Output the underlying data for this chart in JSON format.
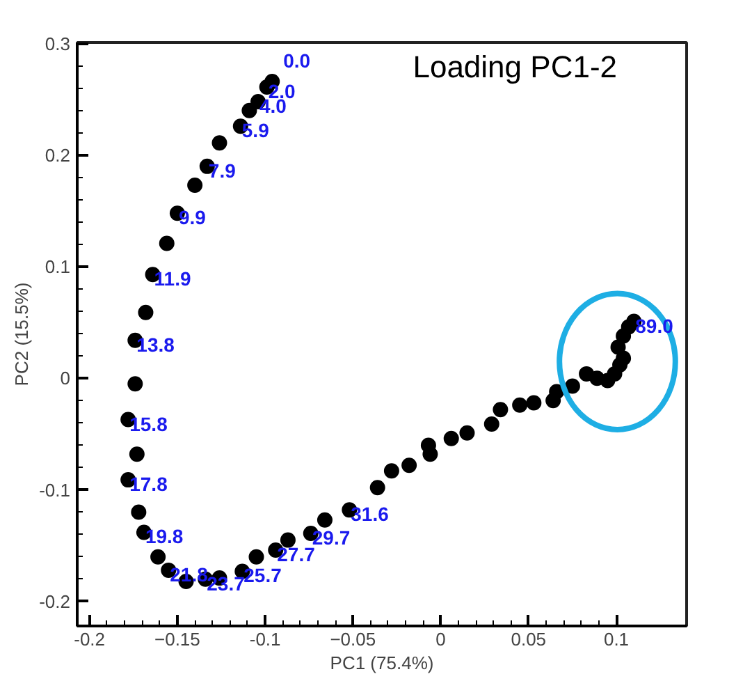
{
  "chart_data": {
    "type": "scatter",
    "title": "Loading PC1-2",
    "xlabel": "PC1 (75.4%)",
    "ylabel": "PC2 (15.5%)",
    "xlim": [
      -0.207,
      0.14
    ],
    "ylim": [
      -0.222,
      0.301
    ],
    "xticks": [
      {
        "value": -0.2,
        "label": "-0.2"
      },
      -0.15,
      {
        "value": -0.1,
        "label": "-0.1"
      },
      -0.05,
      0,
      0.05,
      {
        "value": 0.1,
        "label": "0.1"
      }
    ],
    "yticks": [
      {
        "value": -0.2,
        "label": "-0.2"
      },
      {
        "value": -0.1,
        "label": "-0.1"
      },
      0,
      {
        "value": 0.1,
        "label": "0.1"
      },
      {
        "value": 0.2,
        "label": "0.2"
      },
      {
        "value": 0.3,
        "label": "0.3"
      }
    ],
    "grid": false,
    "marker": "circle",
    "series": [
      {
        "color": "#000000",
        "x": [
          -0.096,
          -0.099,
          -0.104,
          -0.109,
          -0.114,
          -0.126,
          -0.133,
          -0.14,
          -0.15,
          -0.156,
          -0.164,
          -0.168,
          -0.174,
          -0.174,
          -0.178,
          -0.173,
          -0.178,
          -0.172,
          -0.169,
          -0.161,
          -0.155,
          -0.145,
          -0.134,
          -0.126,
          -0.113,
          -0.105,
          -0.094,
          -0.087,
          -0.074,
          -0.066,
          -0.052,
          -0.036,
          -0.028,
          -0.018,
          -0.006,
          -0.007,
          0.006,
          0.015,
          0.029,
          0.034,
          0.045,
          0.053,
          0.064,
          0.066,
          0.075,
          0.083,
          0.089,
          0.095,
          0.099,
          0.102,
          0.104,
          0.101,
          0.104,
          0.107,
          0.11
        ],
        "values": [
          0.266,
          0.261,
          0.248,
          0.24,
          0.226,
          0.211,
          0.19,
          0.173,
          0.148,
          0.121,
          0.093,
          0.059,
          0.034,
          -0.005,
          -0.037,
          -0.068,
          -0.091,
          -0.12,
          -0.138,
          -0.16,
          -0.172,
          -0.182,
          -0.18,
          -0.179,
          -0.173,
          -0.16,
          -0.154,
          -0.145,
          -0.139,
          -0.127,
          -0.118,
          -0.098,
          -0.083,
          -0.078,
          -0.068,
          -0.06,
          -0.054,
          -0.049,
          -0.041,
          -0.028,
          -0.024,
          -0.022,
          -0.02,
          -0.012,
          -0.007,
          0.004,
          0.0,
          -0.002,
          0.004,
          0.012,
          0.018,
          0.028,
          0.038,
          0.046,
          0.051
        ]
      }
    ],
    "annotations": [
      {
        "text": "0.0",
        "x": -0.096,
        "y": 0.266
      },
      {
        "text": "2.0",
        "x": -0.099,
        "y": 0.261
      },
      {
        "text": "4.0",
        "x": -0.104,
        "y": 0.248
      },
      {
        "text": "5.9",
        "x": -0.114,
        "y": 0.226
      },
      {
        "text": "7.9",
        "x": -0.133,
        "y": 0.19
      },
      {
        "text": "9.9",
        "x": -0.15,
        "y": 0.148
      },
      {
        "text": "11.9",
        "x": -0.164,
        "y": 0.093
      },
      {
        "text": "13.8",
        "x": -0.174,
        "y": 0.034
      },
      {
        "text": "15.8",
        "x": -0.178,
        "y": -0.037
      },
      {
        "text": "17.8",
        "x": -0.178,
        "y": -0.091
      },
      {
        "text": "19.8",
        "x": -0.169,
        "y": -0.138
      },
      {
        "text": "21.8",
        "x": -0.155,
        "y": -0.172
      },
      {
        "text": "23.7",
        "x": -0.134,
        "y": -0.18
      },
      {
        "text": "25.7",
        "x": -0.113,
        "y": -0.173
      },
      {
        "text": "27.7",
        "x": -0.094,
        "y": -0.154
      },
      {
        "text": "29.7",
        "x": -0.074,
        "y": -0.139
      },
      {
        "text": "31.6",
        "x": -0.052,
        "y": -0.118
      },
      {
        "text": "89.0",
        "x": 0.11,
        "y": 0.051
      }
    ]
  }
}
